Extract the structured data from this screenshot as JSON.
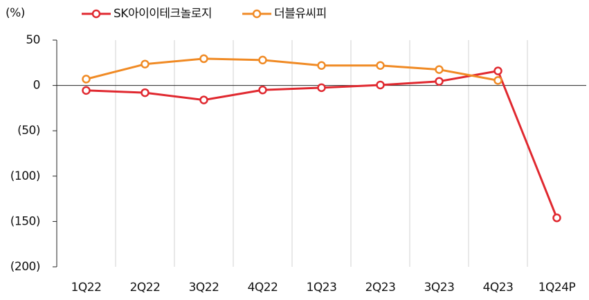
{
  "chart_data": {
    "type": "line",
    "y_unit": "(%)",
    "categories": [
      "1Q22",
      "2Q22",
      "3Q22",
      "4Q22",
      "1Q23",
      "2Q23",
      "3Q23",
      "4Q23",
      "1Q24P"
    ],
    "series": [
      {
        "name": "SK아이이테크놀로지",
        "color": "#e0282f",
        "values": [
          -5.5,
          -8,
          -16,
          -5,
          -2.5,
          0.5,
          4.5,
          16,
          -146
        ]
      },
      {
        "name": "더블유씨피",
        "color": "#f08a24",
        "values": [
          7,
          23.5,
          29.5,
          28,
          22,
          22,
          17.5,
          5.5,
          null
        ]
      }
    ],
    "ylim": [
      -200,
      50
    ],
    "yticks": [
      {
        "value": -200,
        "label": "(200)"
      },
      {
        "value": -150,
        "label": "(150)"
      },
      {
        "value": -100,
        "label": "(100)"
      },
      {
        "value": -50,
        "label": "(50)"
      },
      0,
      50
    ],
    "legend": "top"
  }
}
